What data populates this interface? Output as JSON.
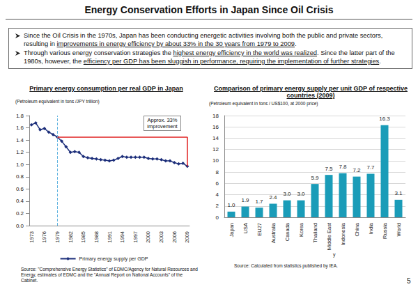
{
  "title": "Energy Conservation Efforts in Japan Since Oil Crisis",
  "bullets": [
    [
      {
        "text": "Since the Oil Crisis in the 1970s, Japan has been conducting energetic activities involving both the public and private sectors, resulting in ",
        "underline": false
      },
      {
        "text": "improvements in energy efficiency by about 33% in the 30 years from 1979 to 2009",
        "underline": true
      },
      {
        "text": ".",
        "underline": false
      }
    ],
    [
      {
        "text": "Through various energy conservation strategies the ",
        "underline": false
      },
      {
        "text": "highest energy efficiency in the world was realized",
        "underline": true
      },
      {
        "text": ". Since the latter part of the 1980s, however, the ",
        "underline": false
      },
      {
        "text": "efficiency per GDP has been sluggish in performance, requiring the implementation of further strategies",
        "underline": true
      },
      {
        "text": ".",
        "underline": false
      }
    ]
  ],
  "page_number": "5",
  "chart_data": [
    {
      "type": "line",
      "title": "Primary energy consumption per real GDP in Japan",
      "y_label": "(Petroleum equivalent in tons /JPY trillion)",
      "categories": [
        "1973",
        null,
        null,
        "1976",
        null,
        null,
        "1979",
        null,
        null,
        "1982",
        null,
        null,
        "1985",
        null,
        null,
        "1988",
        null,
        null,
        "1991",
        null,
        null,
        "1994",
        null,
        null,
        "1997",
        null,
        null,
        "2000",
        null,
        null,
        "2003",
        null,
        null,
        "2006",
        null,
        null,
        "2009"
      ],
      "series": [
        {
          "name": "Primary energy supply per GDP",
          "color": "#1c2e7a",
          "marker": "diamond",
          "values": [
            1.65,
            1.68,
            1.57,
            1.59,
            1.53,
            1.49,
            1.45,
            1.38,
            1.29,
            1.2,
            1.21,
            1.2,
            1.13,
            1.11,
            1.1,
            1.09,
            1.08,
            1.07,
            1.06,
            1.07,
            1.1,
            1.13,
            1.12,
            1.12,
            1.12,
            1.12,
            1.12,
            1.1,
            1.09,
            1.09,
            1.08,
            1.06,
            1.06,
            1.03,
            1.01,
            1.02,
            0.97
          ]
        }
      ],
      "ylim": [
        0,
        1.8
      ],
      "yticks": [
        {
          "value": 0,
          "label": "0.0"
        },
        {
          "value": 0.2,
          "label": "0.2"
        },
        {
          "value": 0.4,
          "label": "0.4"
        },
        {
          "value": 0.6,
          "label": "0.6"
        },
        {
          "value": 0.8,
          "label": "0.8"
        },
        {
          "value": 1,
          "label": "1.0"
        },
        {
          "value": 1.2,
          "label": "1.2"
        },
        {
          "value": 1.4,
          "label": "1.4"
        },
        {
          "value": 1.6,
          "label": "1.6"
        },
        {
          "value": 1.8,
          "label": "1.8"
        }
      ],
      "grid": false,
      "legend": "bottom",
      "annotation": {
        "text": "Approx. 33% improvement",
        "from": "1979",
        "to": "2009",
        "color": "#e02020"
      },
      "source": "Source: \"Comprehensive Energy Statistics\" of EDMC/Agency for Natural Resources and Energy, estimates of EDMC and the \"Annual Report on National Accounts\" of the Cabinet."
    },
    {
      "type": "bar",
      "title": "Comparison of primary energy supply per unit GDP of respective countries (2009)",
      "y_label": "(Petroleum equivalent in tons / US$100, at 2000 price)",
      "x_label": "y",
      "categories": [
        "Japan",
        "USA",
        "EU27",
        "Australia",
        "Canada",
        "Korea",
        "Thailand",
        "Middle East",
        "Indonesia",
        "China",
        "India",
        "Russia",
        "World"
      ],
      "values": [
        1.0,
        1.9,
        1.7,
        2.4,
        3.0,
        3.0,
        5.9,
        7.5,
        7.8,
        7.2,
        7.7,
        16.3,
        3.1
      ],
      "value_labels": [
        "1.0",
        "1.9",
        "1.7",
        "2.4",
        "3.0",
        "3.0",
        "5.9",
        "7.5",
        "7.8",
        "7.2",
        "7.7",
        "16.3",
        "3.1"
      ],
      "color": "#1a9cb8",
      "ylim": [
        0,
        18
      ],
      "yticks": [
        0,
        2,
        4,
        6,
        8,
        10,
        12,
        14,
        16,
        18
      ],
      "grid": true,
      "data_labels": true,
      "source": "Source: Calculated from statistics published by IEA."
    }
  ]
}
